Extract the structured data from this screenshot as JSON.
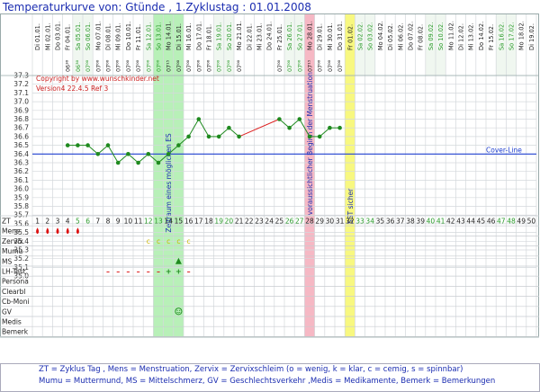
{
  "title": "Temperaturkurve von: Gtünde , 1.Zyklustag : 01.01.2008",
  "copyright": "Copyright by www.wunschkinder.net",
  "version": "Version4 22.4.5 Ref 3",
  "coverline_label": "Cover-Line",
  "row_labels": [
    "ZT",
    "Mens",
    "Zervix",
    "Mumu",
    "MS",
    "LH-Test",
    "Persona",
    "Clearbl",
    "Cb-Moni",
    "GV",
    "Medis",
    "Bemerk"
  ],
  "days": [
    {
      "date": "Di 01.01.",
      "time": ""
    },
    {
      "date": "Mi 02.01.",
      "time": ""
    },
    {
      "date": "Do 03.01.",
      "time": ""
    },
    {
      "date": "Fr 04.01.",
      "time": "06³⁰"
    },
    {
      "date": "Sa 05.01.",
      "time": "06³⁰"
    },
    {
      "date": "So 06.01.",
      "time": "07⁰⁰"
    },
    {
      "date": "Mo 07.01.",
      "time": "07⁰⁰"
    },
    {
      "date": "Di 08.01.",
      "time": "07⁰⁰"
    },
    {
      "date": "Mi 09.01.",
      "time": "07⁰⁰"
    },
    {
      "date": "Do 10.01.",
      "time": "07⁰⁰"
    },
    {
      "date": "Fr 11.01.",
      "time": "07⁰⁰"
    },
    {
      "date": "Sa 12.01.",
      "time": "07⁰⁰"
    },
    {
      "date": "So 13.01.",
      "time": "07⁰⁰"
    },
    {
      "date": "Mo 14.01.",
      "time": "07¹⁵"
    },
    {
      "date": "Di 15.01.",
      "time": "07⁰⁰"
    },
    {
      "date": "Mi 16.01.",
      "time": "07⁰⁰"
    },
    {
      "date": "Do 17.01.",
      "time": "07⁰⁰"
    },
    {
      "date": "Fr 18.01.",
      "time": "07⁰⁰"
    },
    {
      "date": "Sa 19.01.",
      "time": "07⁰⁰"
    },
    {
      "date": "So 20.01.",
      "time": "07⁰⁰"
    },
    {
      "date": "Mo 21.01.",
      "time": "07⁰⁰"
    },
    {
      "date": "Di 22.01.",
      "time": ""
    },
    {
      "date": "Mi 23.01.",
      "time": ""
    },
    {
      "date": "Do 24.01.",
      "time": ""
    },
    {
      "date": "Fr 25.01.",
      "time": "07⁰⁰"
    },
    {
      "date": "Sa 26.01.",
      "time": "07⁰⁰"
    },
    {
      "date": "So 27.01.",
      "time": "07⁰⁰"
    },
    {
      "date": "Mo 28.01.",
      "time": "07¹⁵"
    },
    {
      "date": "Di 29.01.",
      "time": "07⁰⁰"
    },
    {
      "date": "Mi 30.01.",
      "time": "07⁰⁰"
    },
    {
      "date": "Do 31.01.",
      "time": "07⁰⁰"
    },
    {
      "date": "Fr 01.02.",
      "time": ""
    },
    {
      "date": "Sa 02.02.",
      "time": ""
    },
    {
      "date": "So 03.02.",
      "time": ""
    },
    {
      "date": "Mo 04.02.",
      "time": ""
    },
    {
      "date": "Di 05.02.",
      "time": ""
    },
    {
      "date": "Mi 06.02.",
      "time": ""
    },
    {
      "date": "Do 07.02.",
      "time": ""
    },
    {
      "date": "Fr 08.02.",
      "time": ""
    },
    {
      "date": "Sa 09.02.",
      "time": ""
    },
    {
      "date": "So 10.02.",
      "time": ""
    },
    {
      "date": "Mo 11.02.",
      "time": ""
    },
    {
      "date": "Di 12.02.",
      "time": ""
    },
    {
      "date": "Mi 13.02.",
      "time": ""
    },
    {
      "date": "Do 14.02.",
      "time": ""
    },
    {
      "date": "Fr 15.02.",
      "time": ""
    },
    {
      "date": "Sa 16.02.",
      "time": ""
    },
    {
      "date": "So 17.02.",
      "time": ""
    },
    {
      "date": "Mo 18.02.",
      "time": ""
    },
    {
      "date": "Di 19.02.",
      "time": ""
    }
  ],
  "weekend_days": [
    5,
    6,
    12,
    13,
    19,
    20,
    26,
    27,
    33,
    34,
    40,
    41,
    47,
    48
  ],
  "mens_days": [
    1,
    2,
    3,
    4,
    5
  ],
  "zervix": [
    {
      "day": 12,
      "value": "c"
    },
    {
      "day": 13,
      "value": "c"
    },
    {
      "day": 14,
      "value": "c"
    },
    {
      "day": 15,
      "value": "c"
    },
    {
      "day": 16,
      "value": "c"
    }
  ],
  "ms_days": [
    15
  ],
  "lh_test": [
    {
      "day": 8,
      "value": "–"
    },
    {
      "day": 9,
      "value": "–"
    },
    {
      "day": 10,
      "value": "–"
    },
    {
      "day": 11,
      "value": "–"
    },
    {
      "day": 12,
      "value": "–"
    },
    {
      "day": 13,
      "value": "–"
    },
    {
      "day": 14,
      "value": "+"
    },
    {
      "day": 15,
      "value": "+"
    },
    {
      "day": 16,
      "value": "–"
    }
  ],
  "gv_days": [
    15
  ],
  "bands": [
    {
      "from": 13,
      "to": 15,
      "color": "#b8f0b8",
      "label": "Zeitraum eines möglichen ES"
    },
    {
      "from": 28,
      "to": 28,
      "color": "#f6b8c4",
      "label": "voraussichtlicher Beginn der Menstruation"
    },
    {
      "from": 32,
      "to": 32,
      "color": "#f8f880",
      "label": "SST sicher"
    }
  ],
  "colors": {
    "coverline": "#2040d0",
    "points": "#1f8a1f",
    "gap_line": "#dd2222",
    "mens": "#dd1111",
    "title": "#1a2cb0",
    "zervix": "#c8b400"
  },
  "chart_data": {
    "type": "line",
    "title": "Temperaturkurve von: Gtünde , 1.Zyklustag : 01.01.2008",
    "xlabel": "ZT",
    "ylabel": "",
    "ylim": [
      35.0,
      37.3
    ],
    "yticks": [
      35.0,
      35.1,
      35.2,
      35.3,
      35.4,
      35.5,
      35.6,
      35.7,
      35.8,
      35.9,
      36.0,
      36.1,
      36.2,
      36.3,
      36.4,
      36.5,
      36.6,
      36.7,
      36.8,
      36.9,
      37.0,
      37.1,
      37.2,
      37.3
    ],
    "x": [
      1,
      2,
      3,
      4,
      5,
      6,
      7,
      8,
      9,
      10,
      11,
      12,
      13,
      14,
      15,
      16,
      17,
      18,
      19,
      20,
      21,
      22,
      23,
      24,
      25,
      26,
      27,
      28,
      29,
      30,
      31,
      32,
      33,
      34,
      35,
      36,
      37,
      38,
      39,
      40,
      41,
      42,
      43,
      44,
      45,
      46,
      47,
      48,
      49,
      50
    ],
    "series": [
      {
        "points": [
          {
            "x": 4,
            "y": 36.5
          },
          {
            "x": 5,
            "y": 36.5
          },
          {
            "x": 6,
            "y": 36.5
          },
          {
            "x": 7,
            "y": 36.4
          },
          {
            "x": 8,
            "y": 36.5
          },
          {
            "x": 9,
            "y": 36.3
          },
          {
            "x": 10,
            "y": 36.4
          },
          {
            "x": 11,
            "y": 36.3
          },
          {
            "x": 12,
            "y": 36.4
          },
          {
            "x": 13,
            "y": 36.3
          },
          {
            "x": 14,
            "y": 36.4
          },
          {
            "x": 15,
            "y": 36.5
          },
          {
            "x": 16,
            "y": 36.6
          },
          {
            "x": 17,
            "y": 36.8
          },
          {
            "x": 18,
            "y": 36.6
          },
          {
            "x": 19,
            "y": 36.6
          },
          {
            "x": 20,
            "y": 36.7
          },
          {
            "x": 21,
            "y": 36.6
          },
          {
            "x": 25,
            "y": 36.8
          },
          {
            "x": 26,
            "y": 36.7
          },
          {
            "x": 27,
            "y": 36.8
          },
          {
            "x": 28,
            "y": 36.6
          },
          {
            "x": 29,
            "y": 36.6
          },
          {
            "x": 30,
            "y": 36.7
          },
          {
            "x": 31,
            "y": 36.7
          }
        ]
      }
    ],
    "coverline": 36.4,
    "grid": true
  },
  "footer": {
    "line1": "ZT = Zyklus Tag , Mens = Menstruation, Zervix = Zervixschleim (o = wenig, k = klar, c = cemig, s = spinnbar)",
    "line2": "Mumu = Muttermund, MS = Mittelschmerz, GV = Geschlechtsverkehr ,Medis = Medikamente, Bemerk = Bemerkungen"
  }
}
